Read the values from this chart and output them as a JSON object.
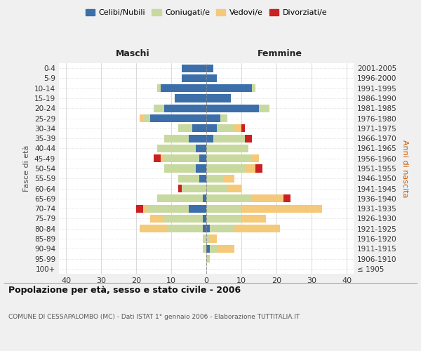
{
  "age_groups": [
    "100+",
    "95-99",
    "90-94",
    "85-89",
    "80-84",
    "75-79",
    "70-74",
    "65-69",
    "60-64",
    "55-59",
    "50-54",
    "45-49",
    "40-44",
    "35-39",
    "30-34",
    "25-29",
    "20-24",
    "15-19",
    "10-14",
    "5-9",
    "0-4"
  ],
  "birth_years": [
    "≤ 1905",
    "1906-1910",
    "1911-1915",
    "1916-1920",
    "1921-1925",
    "1926-1930",
    "1931-1935",
    "1936-1940",
    "1941-1945",
    "1946-1950",
    "1951-1955",
    "1956-1960",
    "1961-1965",
    "1966-1970",
    "1971-1975",
    "1976-1980",
    "1981-1985",
    "1986-1990",
    "1991-1995",
    "1996-2000",
    "2001-2005"
  ],
  "males": {
    "celibi": [
      0,
      0,
      0,
      0,
      1,
      1,
      5,
      1,
      0,
      2,
      3,
      2,
      3,
      5,
      4,
      16,
      12,
      9,
      13,
      7,
      7
    ],
    "coniugati": [
      0,
      0,
      1,
      1,
      10,
      11,
      12,
      13,
      7,
      6,
      9,
      10,
      11,
      7,
      4,
      2,
      3,
      0,
      1,
      0,
      0
    ],
    "vedovi": [
      0,
      0,
      0,
      0,
      8,
      4,
      1,
      0,
      0,
      0,
      0,
      1,
      0,
      0,
      0,
      1,
      0,
      0,
      0,
      0,
      0
    ],
    "divorziati": [
      0,
      0,
      0,
      0,
      0,
      0,
      2,
      0,
      1,
      0,
      0,
      2,
      0,
      0,
      0,
      0,
      0,
      0,
      0,
      0,
      0
    ]
  },
  "females": {
    "nubili": [
      0,
      0,
      1,
      0,
      1,
      0,
      0,
      0,
      0,
      0,
      0,
      0,
      0,
      2,
      3,
      4,
      15,
      7,
      13,
      3,
      2
    ],
    "coniugate": [
      0,
      1,
      2,
      1,
      7,
      10,
      10,
      13,
      6,
      5,
      11,
      13,
      12,
      9,
      5,
      2,
      3,
      0,
      1,
      0,
      0
    ],
    "vedove": [
      0,
      0,
      5,
      2,
      13,
      7,
      23,
      9,
      4,
      3,
      3,
      2,
      0,
      0,
      2,
      0,
      0,
      0,
      0,
      0,
      0
    ],
    "divorziate": [
      0,
      0,
      0,
      0,
      0,
      0,
      0,
      2,
      0,
      0,
      2,
      0,
      0,
      2,
      1,
      0,
      0,
      0,
      0,
      0,
      0
    ]
  },
  "colors": {
    "celibi": "#3c6faa",
    "coniugati": "#c8d9a0",
    "vedovi": "#f5c97a",
    "divorziati": "#cc2020"
  },
  "xlim": 42,
  "title": "Popolazione per età, sesso e stato civile - 2006",
  "subtitle": "COMUNE DI CESSAPALOMBO (MC) - Dati ISTAT 1° gennaio 2006 - Elaborazione TUTTITALIA.IT",
  "xlabel_left": "Maschi",
  "xlabel_right": "Femmine",
  "ylabel_left": "Fasce di età",
  "ylabel_right": "Anni di nascita",
  "legend_labels": [
    "Celibi/Nubili",
    "Coniugati/e",
    "Vedovi/e",
    "Divorziati/e"
  ],
  "bg_color": "#f0f0f0",
  "plot_bg_color": "#ffffff"
}
